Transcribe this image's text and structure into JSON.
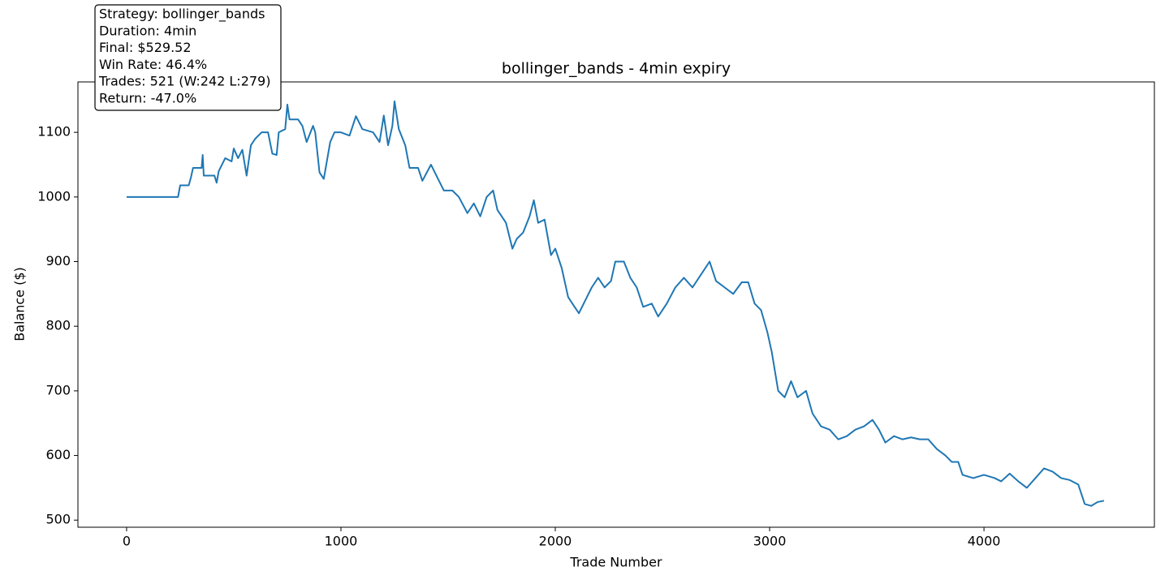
{
  "chart_data": {
    "type": "line",
    "title": "bollinger_bands - 4min expiry",
    "x_label": "Trade Number",
    "y_label": "Balance ($)",
    "annotation": [
      "Strategy: bollinger_bands",
      "Duration: 4min",
      "Final: $529.52",
      "Win Rate: 46.4%",
      "Trades: 521 (W:242 L:279)",
      "Return: -47.0%"
    ],
    "color": "#1f77b4",
    "xlim": [
      -227,
      4795
    ],
    "ylim": [
      489,
      1178
    ],
    "xticks": [
      0,
      1000,
      2000,
      3000,
      4000
    ],
    "yticks": [
      500,
      600,
      700,
      800,
      900,
      1000,
      1100
    ],
    "x": [
      0,
      240,
      250,
      290,
      300,
      310,
      350,
      355,
      360,
      410,
      420,
      430,
      460,
      490,
      500,
      520,
      540,
      560,
      580,
      600,
      630,
      660,
      680,
      700,
      710,
      740,
      750,
      760,
      800,
      820,
      840,
      870,
      880,
      900,
      920,
      950,
      970,
      1000,
      1040,
      1070,
      1100,
      1150,
      1180,
      1200,
      1220,
      1240,
      1250,
      1270,
      1300,
      1320,
      1360,
      1380,
      1420,
      1450,
      1480,
      1520,
      1550,
      1590,
      1620,
      1650,
      1680,
      1710,
      1730,
      1770,
      1800,
      1820,
      1850,
      1880,
      1900,
      1920,
      1950,
      1980,
      2000,
      2030,
      2060,
      2090,
      2110,
      2140,
      2170,
      2200,
      2230,
      2260,
      2280,
      2320,
      2350,
      2380,
      2410,
      2450,
      2480,
      2520,
      2560,
      2600,
      2640,
      2680,
      2720,
      2750,
      2790,
      2830,
      2870,
      2900,
      2930,
      2960,
      2990,
      3010,
      3040,
      3070,
      3100,
      3130,
      3170,
      3200,
      3240,
      3280,
      3320,
      3360,
      3400,
      3440,
      3480,
      3510,
      3540,
      3580,
      3620,
      3660,
      3700,
      3740,
      3780,
      3820,
      3850,
      3880,
      3900,
      3950,
      4000,
      4050,
      4080,
      4120,
      4160,
      4200,
      4240,
      4280,
      4320,
      4360,
      4400,
      4440,
      4470,
      4500,
      4530,
      4560
    ],
    "values": [
      1000,
      1000,
      1018,
      1018,
      1030,
      1045,
      1045,
      1065,
      1033,
      1033,
      1022,
      1040,
      1060,
      1055,
      1075,
      1060,
      1073,
      1033,
      1080,
      1090,
      1100,
      1100,
      1067,
      1065,
      1100,
      1105,
      1143,
      1120,
      1120,
      1110,
      1085,
      1110,
      1100,
      1038,
      1028,
      1085,
      1100,
      1100,
      1095,
      1125,
      1105,
      1100,
      1085,
      1126,
      1080,
      1110,
      1148,
      1105,
      1080,
      1045,
      1045,
      1025,
      1050,
      1030,
      1010,
      1010,
      1000,
      975,
      990,
      970,
      1000,
      1010,
      980,
      960,
      920,
      935,
      945,
      970,
      995,
      960,
      965,
      910,
      920,
      890,
      845,
      830,
      820,
      840,
      860,
      875,
      860,
      870,
      900,
      900,
      875,
      860,
      830,
      835,
      815,
      835,
      860,
      875,
      860,
      880,
      900,
      870,
      860,
      850,
      868,
      868,
      835,
      825,
      790,
      760,
      700,
      690,
      715,
      690,
      700,
      665,
      645,
      640,
      625,
      630,
      640,
      645,
      655,
      640,
      620,
      630,
      625,
      628,
      625,
      625,
      610,
      600,
      590,
      590,
      570,
      565,
      570,
      565,
      560,
      572,
      560,
      550,
      565,
      580,
      575,
      565,
      562,
      555,
      525,
      522,
      528,
      530
    ]
  }
}
